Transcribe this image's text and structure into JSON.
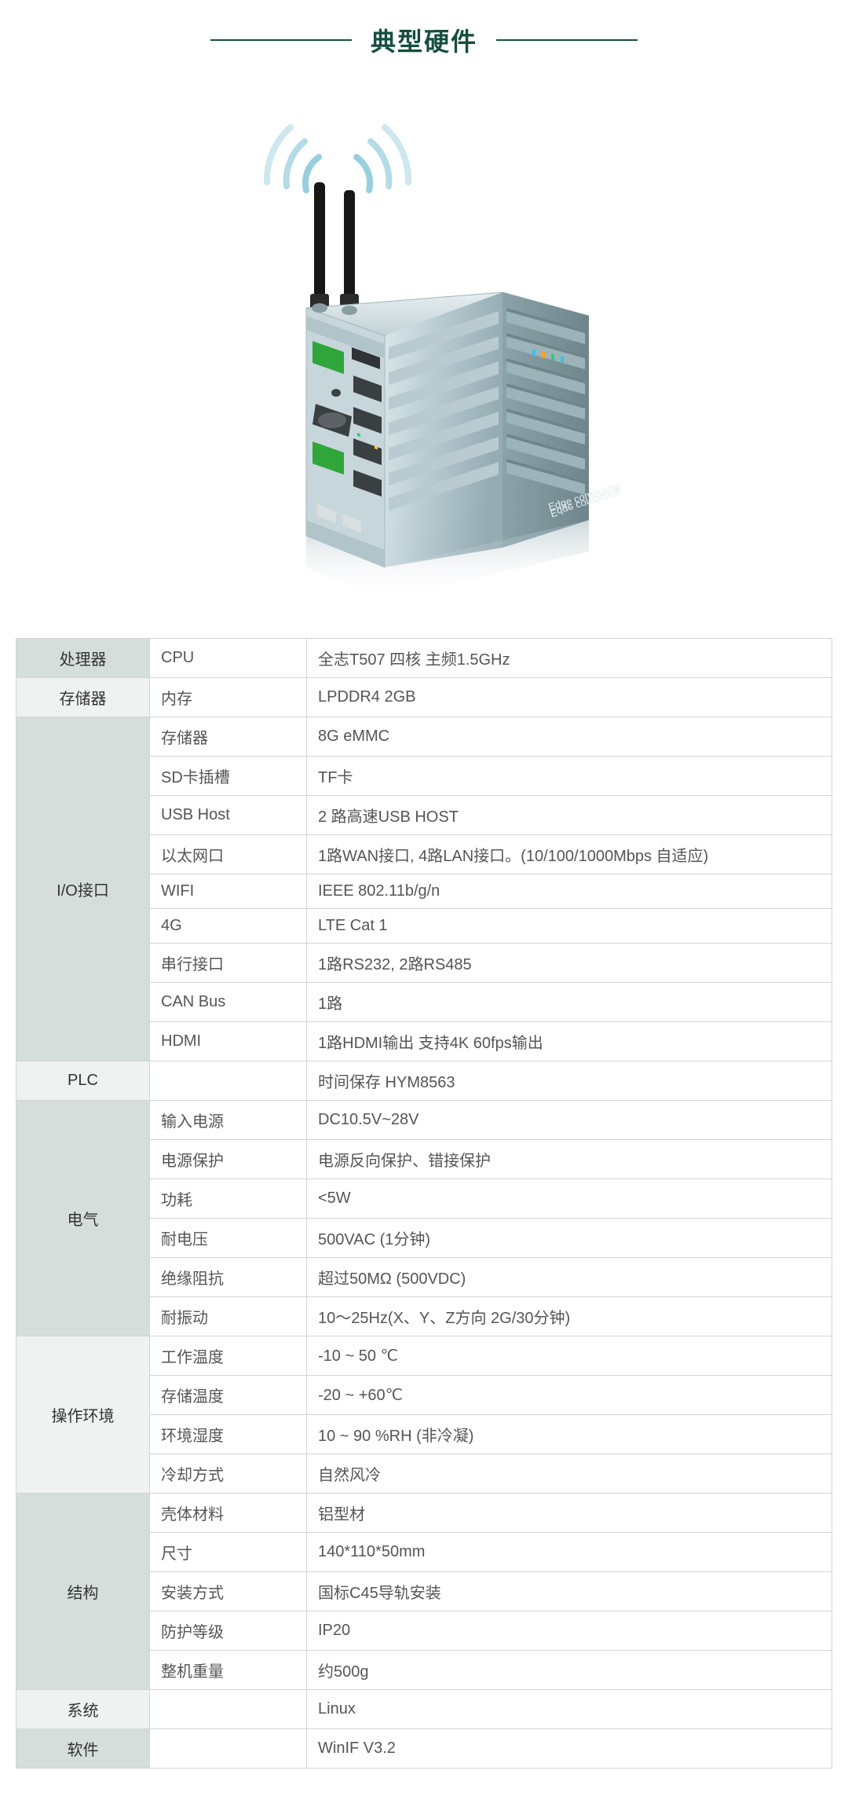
{
  "title": "典型硬件",
  "title_color": "#164e3f",
  "rule_color": "#164e3f",
  "image": {
    "device_label": "Edge computing",
    "body_light": "#c7d6db",
    "body_mid": "#a9bfc6",
    "body_dark": "#7f979f",
    "body_shadow": "#5b7078",
    "port_green": "#2fa63a",
    "port_gray": "#5d6266",
    "port_light": "#e6eaec",
    "antenna_color": "#171717",
    "wave_colors": [
      "#cfe7ef",
      "#b4dbe6",
      "#98cfdd"
    ],
    "led_colors": [
      "#39c0ed",
      "#ff9f1a",
      "#2ecc71"
    ]
  },
  "table": {
    "header_bg_dark": "#d6dedb",
    "header_bg_light": "#eef2f0",
    "row_bg": "#ffffff",
    "border_color": "#d0d6d4",
    "text_color": "#333333",
    "text_muted": "#555555",
    "groups": [
      {
        "category": "处理器",
        "bg": "dark",
        "rows": [
          {
            "param": "CPU",
            "value": "全志T507 四核 主频1.5GHz"
          }
        ]
      },
      {
        "category": "存储器",
        "bg": "light",
        "rows": [
          {
            "param": "内存",
            "value": "LPDDR4 2GB"
          }
        ]
      },
      {
        "category": "I/O接口",
        "bg": "dark",
        "rows": [
          {
            "param": "存储器",
            "value": "8G eMMC"
          },
          {
            "param": "SD卡插槽",
            "value": "TF卡"
          },
          {
            "param": "USB Host",
            "value": "2 路高速USB HOST"
          },
          {
            "param": "以太网口",
            "value": "1路WAN接口, 4路LAN接口。(10/100/1000Mbps 自适应)"
          },
          {
            "param": "WIFI",
            "value": "IEEE 802.11b/g/n"
          },
          {
            "param": "4G",
            "value": "LTE Cat 1"
          },
          {
            "param": "串行接口",
            "value": "1路RS232, 2路RS485"
          },
          {
            "param": "CAN Bus",
            "value": "1路"
          },
          {
            "param": "HDMI",
            "value": "1路HDMI输出 支持4K 60fps输出"
          }
        ]
      },
      {
        "category": "PLC",
        "bg": "light",
        "rows": [
          {
            "param": "",
            "value": "时间保存 HYM8563"
          }
        ]
      },
      {
        "category": "电气",
        "bg": "dark",
        "rows": [
          {
            "param": "输入电源",
            "value": "DC10.5V~28V"
          },
          {
            "param": "电源保护",
            "value": "电源反向保护、错接保护"
          },
          {
            "param": "功耗",
            "value": "<5W"
          },
          {
            "param": "耐电压",
            "value": "500VAC (1分钟)"
          },
          {
            "param": "绝缘阻抗",
            "value": "超过50MΩ (500VDC)"
          },
          {
            "param": "耐振动",
            "value": "10～25Hz(X、Y、Z方向 2G/30分钟)"
          }
        ]
      },
      {
        "category": "操作环境",
        "bg": "light",
        "rows": [
          {
            "param": "工作温度",
            "value": "-10 ~ 50 ℃"
          },
          {
            "param": "存储温度",
            "value": "-20 ~ +60℃"
          },
          {
            "param": "环境湿度",
            "value": "10 ~ 90 %RH (非冷凝)"
          },
          {
            "param": "冷却方式",
            "value": "自然风冷"
          }
        ]
      },
      {
        "category": "结构",
        "bg": "dark",
        "rows": [
          {
            "param": "壳体材料",
            "value": "铝型材"
          },
          {
            "param": "尺寸",
            "value": "140*110*50mm"
          },
          {
            "param": "安装方式",
            "value": "国标C45导轨安装"
          },
          {
            "param": "防护等级",
            "value": "IP20"
          },
          {
            "param": "整机重量",
            "value": "约500g"
          }
        ]
      },
      {
        "category": "系统",
        "bg": "light",
        "rows": [
          {
            "param": "",
            "value": "Linux"
          }
        ]
      },
      {
        "category": "软件",
        "bg": "dark",
        "rows": [
          {
            "param": "",
            "value": "WinIF V3.2"
          }
        ]
      }
    ]
  }
}
